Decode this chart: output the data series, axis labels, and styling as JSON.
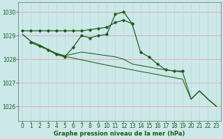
{
  "title": "Graphe pression niveau de la mer (hPa)",
  "bg_color": "#cce8e8",
  "grid_color_h": "#e8a0a0",
  "grid_color_v": "#b8d8d8",
  "line_color": "#1a5c1a",
  "ylim": [
    1025.4,
    1030.4
  ],
  "xlim": [
    -0.5,
    23.5
  ],
  "yticks": [
    1026,
    1027,
    1028,
    1029,
    1030
  ],
  "xticks": [
    0,
    1,
    2,
    3,
    4,
    5,
    6,
    7,
    8,
    9,
    10,
    11,
    12,
    13,
    14,
    15,
    16,
    17,
    18,
    19,
    20,
    21,
    22,
    23
  ],
  "s1_x": [
    0,
    1,
    2,
    3,
    4,
    5,
    6,
    7,
    8,
    9,
    10,
    11,
    12,
    13
  ],
  "s1_y": [
    1029.2,
    1029.2,
    1029.2,
    1029.2,
    1029.2,
    1029.2,
    1029.2,
    1029.2,
    1029.25,
    1029.3,
    1029.35,
    1029.55,
    1029.65,
    1029.5
  ],
  "s2_x": [
    1,
    2,
    3,
    4,
    5,
    6,
    7,
    8,
    9,
    10,
    11,
    12,
    13,
    14,
    15,
    16,
    17,
    18,
    19
  ],
  "s2_y": [
    1028.7,
    1028.55,
    1028.4,
    1028.2,
    1028.1,
    1028.5,
    1029.0,
    1028.9,
    1029.0,
    1029.05,
    1029.9,
    1030.0,
    1029.5,
    1028.3,
    1028.1,
    1027.8,
    1027.55,
    1027.5,
    1027.5
  ],
  "s3_x": [
    0,
    1,
    2,
    3,
    4,
    5,
    6,
    7,
    8,
    9,
    10,
    11,
    12,
    13,
    14,
    15,
    16,
    17,
    18,
    19,
    20,
    21,
    22,
    23
  ],
  "s3_y": [
    1029.05,
    1028.75,
    1028.6,
    1028.4,
    1028.22,
    1028.12,
    1028.05,
    1027.97,
    1027.9,
    1027.82,
    1027.75,
    1027.68,
    1027.62,
    1027.55,
    1027.48,
    1027.42,
    1027.35,
    1027.28,
    1027.22,
    1027.15,
    1026.3,
    1026.65,
    1026.3,
    1026.0
  ],
  "s4_x": [
    0,
    1,
    2,
    3,
    4,
    5,
    6,
    7,
    8,
    9,
    10,
    11,
    12,
    13,
    14,
    15,
    16,
    17,
    18,
    19,
    20,
    21,
    22,
    23
  ],
  "s4_y": [
    1029.05,
    1028.75,
    1028.6,
    1028.42,
    1028.25,
    1028.15,
    1028.22,
    1028.3,
    1028.25,
    1028.2,
    1028.15,
    1028.1,
    1028.0,
    1027.8,
    1027.73,
    1027.67,
    1027.6,
    1027.55,
    1027.5,
    1027.45,
    1026.32,
    1026.67,
    1026.32,
    1026.02
  ],
  "tick_fontsize": 5.5,
  "label_fontsize": 6.0
}
